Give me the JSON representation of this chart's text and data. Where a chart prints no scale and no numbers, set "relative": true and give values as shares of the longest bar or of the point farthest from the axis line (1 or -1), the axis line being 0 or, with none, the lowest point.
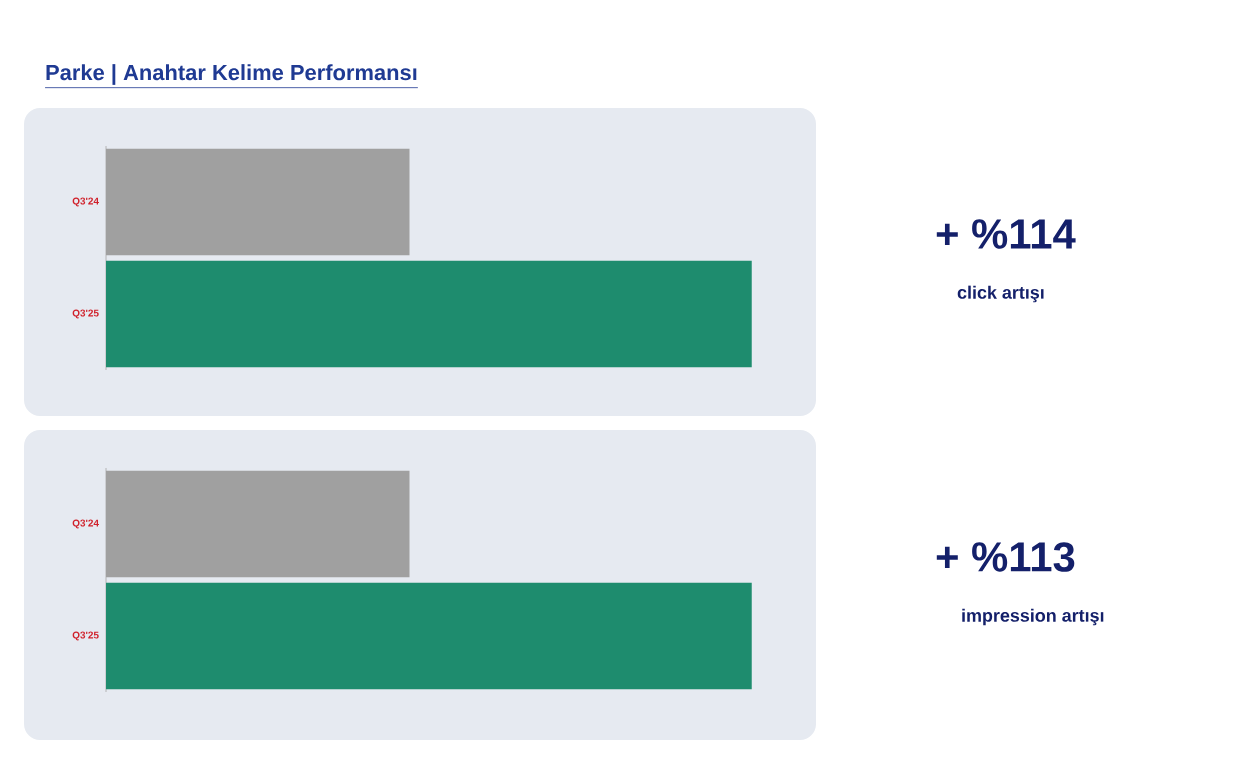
{
  "chart_data": [
    {
      "type": "bar",
      "orientation": "horizontal",
      "relative": true,
      "title": "Parke | Anahtar Kelime Performansı",
      "categories": [
        "Q3'24",
        "Q3'25"
      ],
      "values": [
        0.47,
        1
      ],
      "colors": [
        "#a0a0a0",
        "#1e8c6e"
      ],
      "annotations": [
        "+ %114",
        "click artışı"
      ]
    },
    {
      "type": "bar",
      "orientation": "horizontal",
      "relative": true,
      "categories": [
        "Q3'24",
        "Q3'25"
      ],
      "values": [
        0.47,
        1
      ],
      "colors": [
        "#a0a0a0",
        "#1e8c6e"
      ],
      "annotations": [
        "+ %113",
        "impression artışı"
      ]
    }
  ]
}
